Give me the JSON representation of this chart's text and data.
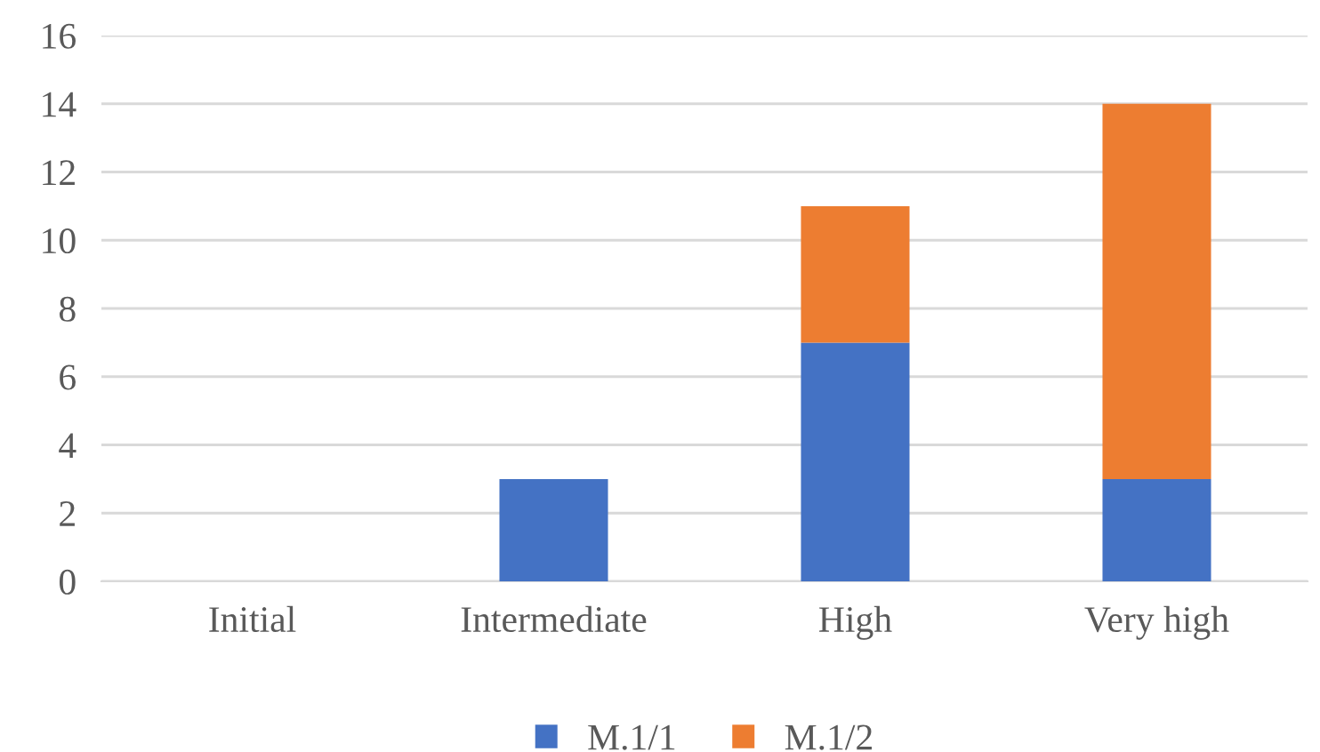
{
  "chart_data": {
    "type": "bar",
    "stacked": true,
    "categories": [
      "Initial",
      "Intermediate",
      "High",
      "Very high"
    ],
    "series": [
      {
        "name": "M.1/1",
        "color": "#4472c4",
        "values": [
          0,
          3,
          7,
          3
        ]
      },
      {
        "name": "M.1/2",
        "color": "#ed7d31",
        "values": [
          0,
          0,
          4,
          11
        ]
      }
    ],
    "ylim": [
      0,
      16
    ],
    "yticks": [
      0,
      2,
      4,
      6,
      8,
      10,
      12,
      14,
      16
    ],
    "grid": "y",
    "legend": "bottom"
  }
}
